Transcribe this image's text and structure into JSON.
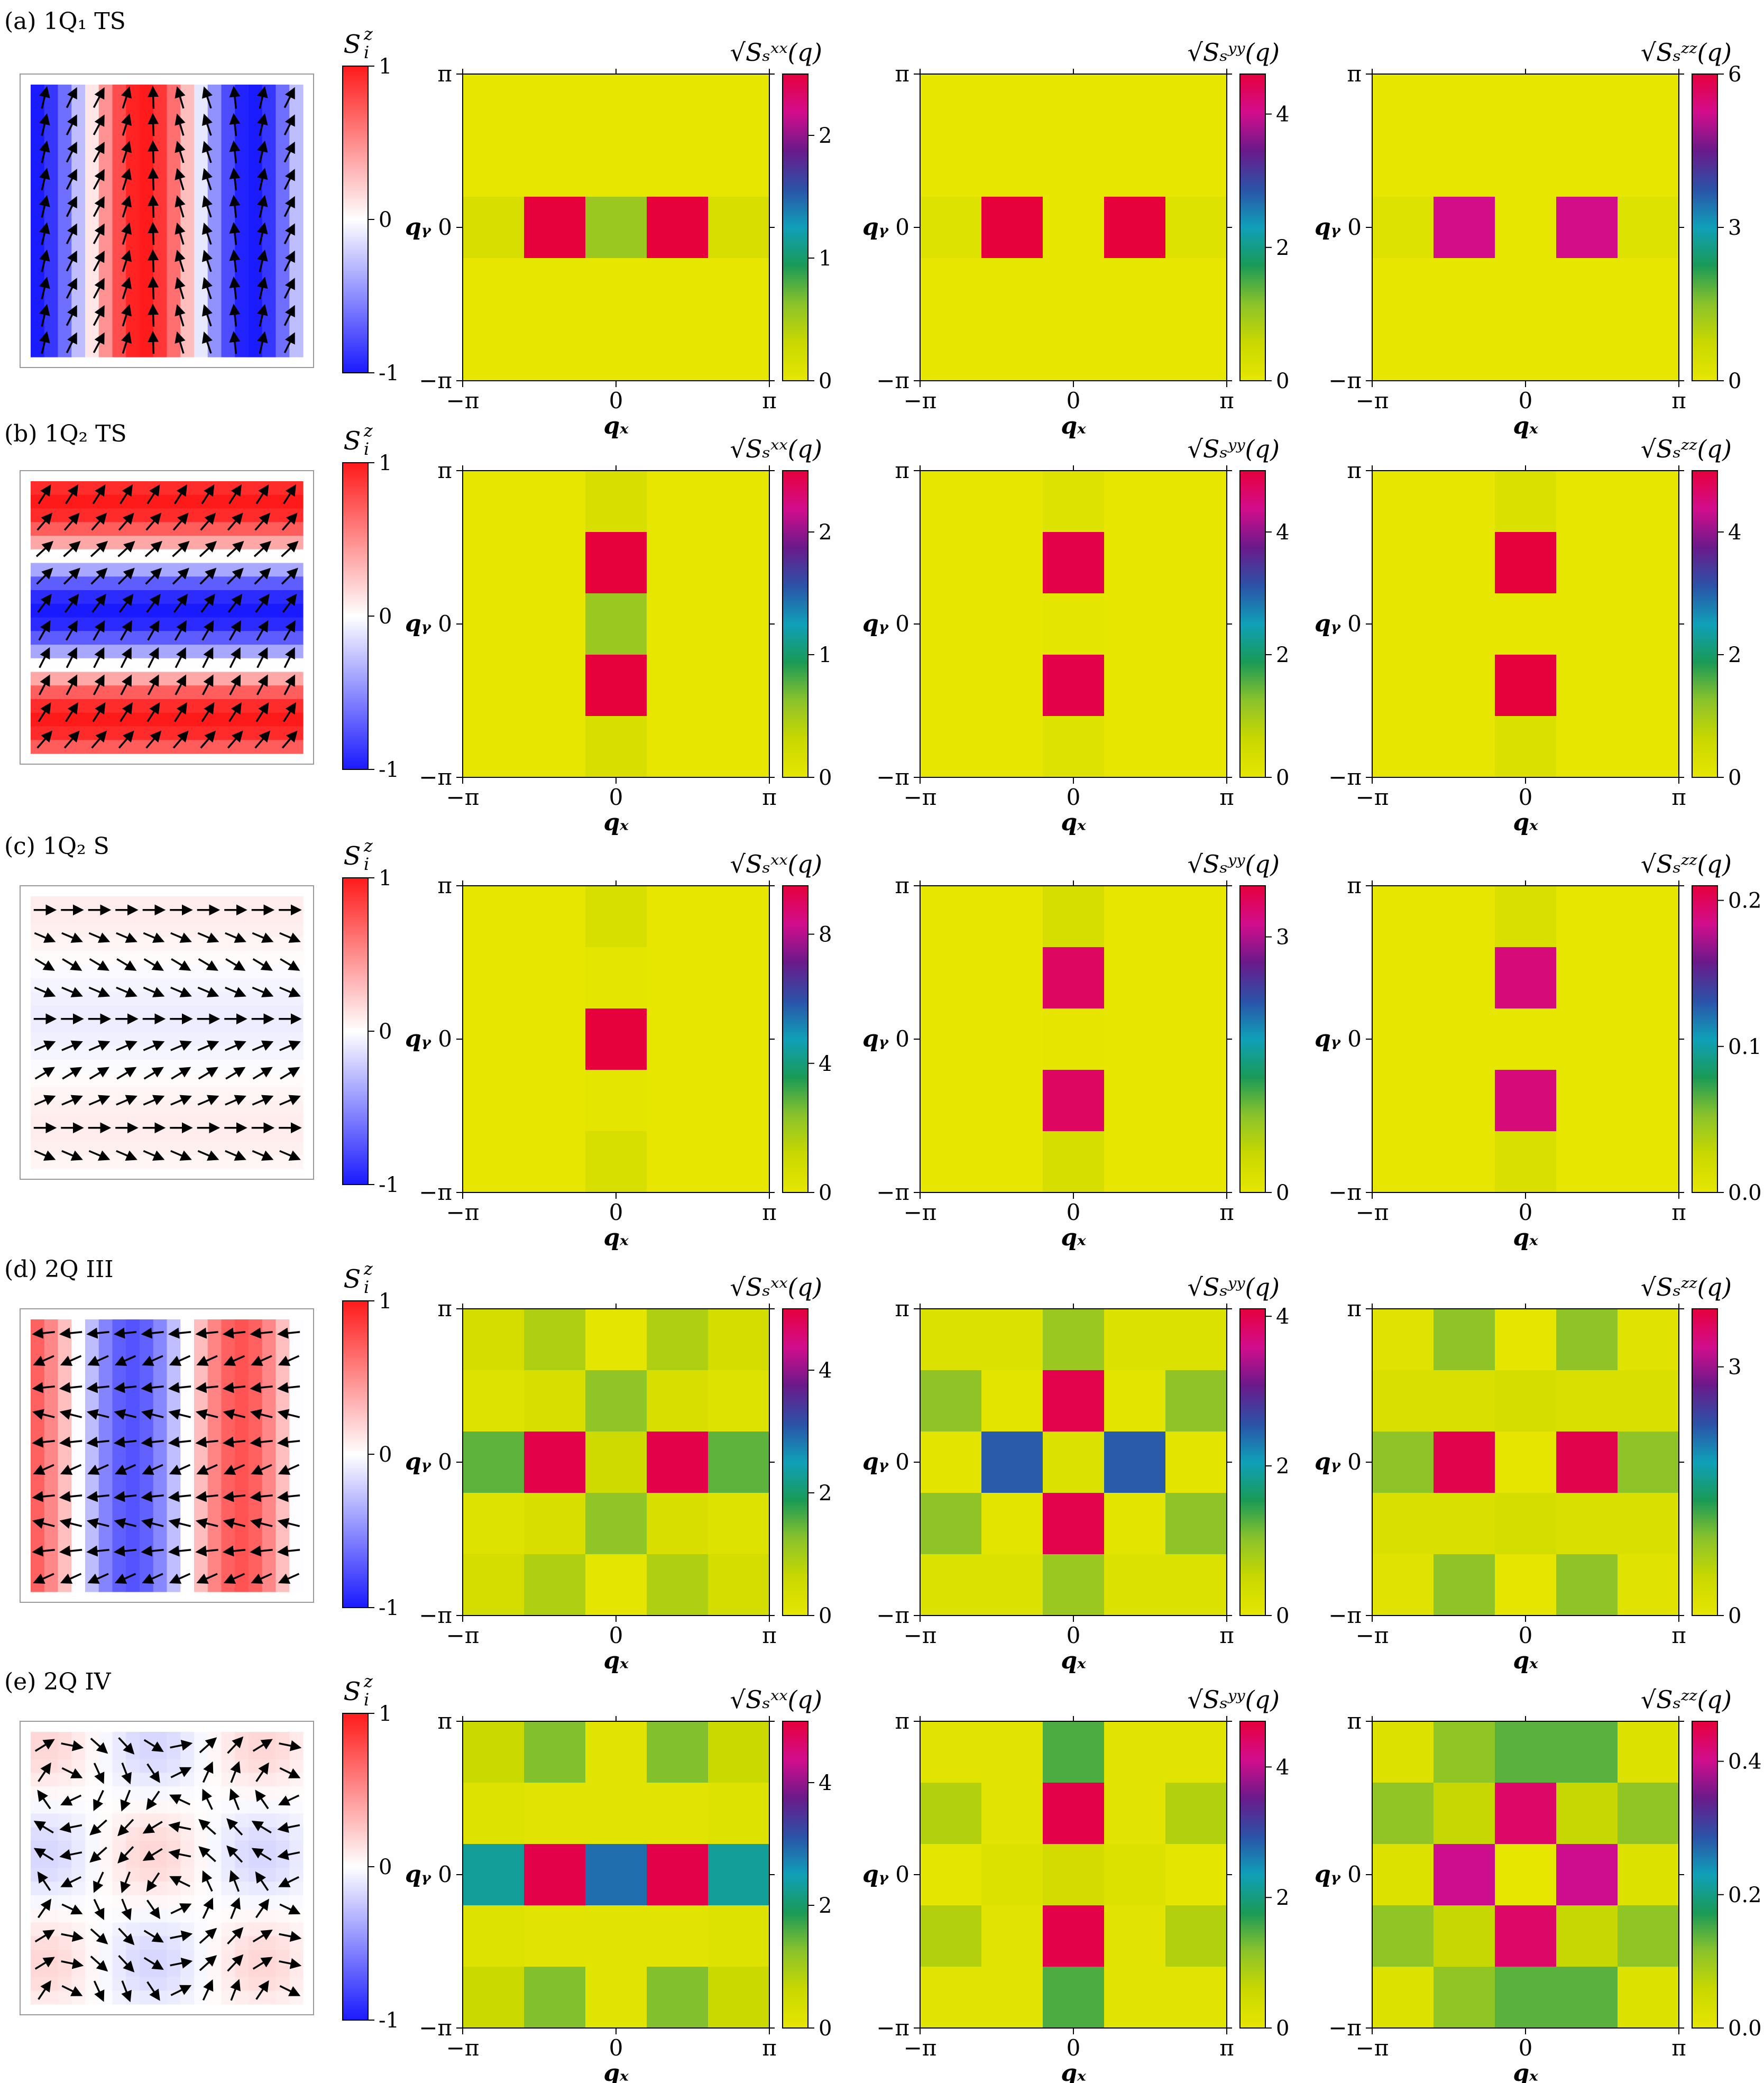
{
  "rows": [
    {
      "label": "(a) 1Q₁ TS",
      "real_space": {
        "colorbar_label": "Sᵢᶻ",
        "ticks": [
          "1",
          "0",
          "-1"
        ],
        "pattern": "vertical-stripes"
      },
      "panels": [
        {
          "label": "√Sₛˣˣ(q)",
          "ticks": [
            "2",
            "1",
            "0"
          ],
          "tick_values": [
            2,
            1,
            0
          ],
          "max": 2.5
        },
        {
          "label": "√Sₛʸʸ(q)",
          "ticks": [
            "4",
            "2",
            "0"
          ],
          "tick_values": [
            4,
            2,
            0
          ],
          "max": 4.6
        },
        {
          "label": "√Sₛᶻᶻ(q)",
          "ticks": [
            "6",
            "3",
            "0"
          ],
          "tick_values": [
            6,
            3,
            0
          ],
          "max": 6
        }
      ]
    },
    {
      "label": "(b) 1Q₂ TS",
      "real_space": {
        "colorbar_label": "Sᵢᶻ",
        "ticks": [
          "1",
          "0",
          "-1"
        ],
        "pattern": "horizontal-stripes"
      },
      "panels": [
        {
          "label": "√Sₛˣˣ(q)",
          "ticks": [
            "2",
            "1",
            "0"
          ],
          "tick_values": [
            2,
            1,
            0
          ],
          "max": 2.5
        },
        {
          "label": "√Sₛʸʸ(q)",
          "ticks": [
            "4",
            "2",
            "0"
          ],
          "tick_values": [
            4,
            2,
            0
          ],
          "max": 5
        },
        {
          "label": "√Sₛᶻᶻ(q)",
          "ticks": [
            "4",
            "2",
            "0"
          ],
          "tick_values": [
            4,
            2,
            0
          ],
          "max": 5
        }
      ]
    },
    {
      "label": "(c) 1Q₂ S",
      "real_space": {
        "colorbar_label": "Sᵢᶻ",
        "ticks": [
          "1",
          "0",
          "-1"
        ],
        "pattern": "screw"
      },
      "panels": [
        {
          "label": "√Sₛˣˣ(q)",
          "ticks": [
            "8",
            "4",
            "0"
          ],
          "tick_values": [
            8,
            4,
            0
          ],
          "max": 9.5
        },
        {
          "label": "√Sₛʸʸ(q)",
          "ticks": [
            "3",
            "0"
          ],
          "tick_values": [
            3,
            0
          ],
          "max": 3.6
        },
        {
          "label": "√Sₛᶻᶻ(q)",
          "ticks": [
            "0.2",
            "0.1",
            "0.0"
          ],
          "tick_values": [
            0.2,
            0.1,
            0
          ],
          "max": 0.21
        }
      ]
    },
    {
      "label": "(d) 2Q III",
      "real_space": {
        "colorbar_label": "Sᵢᶻ",
        "ticks": [
          "1",
          "0",
          "-1"
        ],
        "pattern": "2Q-III"
      },
      "panels": [
        {
          "label": "√Sₛˣˣ(q)",
          "ticks": [
            "4",
            "2",
            "0"
          ],
          "tick_values": [
            4,
            2,
            0
          ],
          "max": 5
        },
        {
          "label": "√Sₛʸʸ(q)",
          "ticks": [
            "4",
            "2",
            "0"
          ],
          "tick_values": [
            4,
            2,
            0
          ],
          "max": 4.1
        },
        {
          "label": "√Sₛᶻᶻ(q)",
          "ticks": [
            "3",
            "0"
          ],
          "tick_values": [
            3,
            0
          ],
          "max": 3.7
        }
      ]
    },
    {
      "label": "(e) 2Q IV",
      "real_space": {
        "colorbar_label": "Sᵢᶻ",
        "ticks": [
          "1",
          "0",
          "-1"
        ],
        "pattern": "2Q-IV"
      },
      "panels": [
        {
          "label": "√Sₛˣˣ(q)",
          "ticks": [
            "4",
            "2",
            "0"
          ],
          "tick_values": [
            4,
            2,
            0
          ],
          "max": 5
        },
        {
          "label": "√Sₛʸʸ(q)",
          "ticks": [
            "4",
            "2",
            "0"
          ],
          "tick_values": [
            4,
            2,
            0
          ],
          "max": 4.7
        },
        {
          "label": "√Sₛᶻᶻ(q)",
          "ticks": [
            "0.4",
            "0.2",
            "0.0"
          ],
          "tick_values": [
            0.4,
            0.2,
            0
          ],
          "max": 0.46
        }
      ]
    }
  ],
  "axes": {
    "xlabel": "qₓ",
    "ylabel": "qᵧ",
    "xticks": [
      "−π",
      "0",
      "π"
    ],
    "yticks": [
      "π",
      "0",
      "−π"
    ]
  },
  "colors": {
    "momentum_colormap": [
      "#e6e600",
      "#c9d800",
      "#8bc32a",
      "#1a9a56",
      "#0fa0b8",
      "#2b52a8",
      "#6a1a8a",
      "#d20d8c",
      "#e6003c"
    ],
    "real_space_colormap": [
      "#1a1aff",
      "#ffffff",
      "#ff1a1a"
    ]
  },
  "chart_data": [
    {
      "type": "heatmap",
      "row": "a",
      "quantity": "√Sₛˣˣ(q)",
      "x": [
        "-2π/5",
        "-π/5",
        "0",
        "π/5",
        "2π/5"
      ],
      "y": [
        "2π/5",
        "π/5",
        "0",
        "-π/5",
        "-2π/5"
      ],
      "z": [
        [
          0,
          0,
          0,
          0,
          0
        ],
        [
          0,
          0,
          0,
          0,
          0
        ],
        [
          0.15,
          2.5,
          0.55,
          2.5,
          0.15
        ],
        [
          0,
          0,
          0,
          0,
          0
        ],
        [
          0,
          0,
          0,
          0,
          0
        ]
      ],
      "range": [
        0,
        2.5
      ]
    },
    {
      "type": "heatmap",
      "row": "a",
      "quantity": "√Sₛʸʸ(q)",
      "z": [
        [
          0,
          0,
          0,
          0,
          0
        ],
        [
          0,
          0,
          0,
          0,
          0
        ],
        [
          0.15,
          4.6,
          0,
          4.6,
          0.15
        ],
        [
          0,
          0,
          0,
          0,
          0
        ],
        [
          0,
          0,
          0,
          0,
          0
        ]
      ],
      "range": [
        0,
        4.6
      ]
    },
    {
      "type": "heatmap",
      "row": "a",
      "quantity": "√Sₛᶻᶻ(q)",
      "z": [
        [
          0,
          0,
          0,
          0,
          0
        ],
        [
          0,
          0,
          0,
          0,
          0
        ],
        [
          0.2,
          5.3,
          0,
          5.3,
          0.2
        ],
        [
          0,
          0,
          0,
          0,
          0
        ],
        [
          0,
          0,
          0,
          0,
          0
        ]
      ],
      "range": [
        0,
        6
      ]
    },
    {
      "type": "heatmap",
      "row": "b",
      "quantity": "√Sₛˣˣ(q)",
      "z": [
        [
          0,
          0,
          0.15,
          0,
          0
        ],
        [
          0,
          0,
          2.5,
          0,
          0
        ],
        [
          0,
          0,
          0.55,
          0,
          0
        ],
        [
          0,
          0,
          2.5,
          0,
          0
        ],
        [
          0,
          0,
          0.15,
          0,
          0
        ]
      ],
      "range": [
        0,
        2.5
      ]
    },
    {
      "type": "heatmap",
      "row": "b",
      "quantity": "√Sₛʸʸ(q)",
      "z": [
        [
          0,
          0,
          0.2,
          0,
          0
        ],
        [
          0,
          0,
          4.9,
          0,
          0
        ],
        [
          0,
          0,
          0.05,
          0,
          0
        ],
        [
          0,
          0,
          4.9,
          0,
          0
        ],
        [
          0,
          0,
          0.2,
          0,
          0
        ]
      ],
      "range": [
        0,
        5
      ]
    },
    {
      "type": "heatmap",
      "row": "b",
      "quantity": "√Sₛᶻᶻ(q)",
      "z": [
        [
          0,
          0,
          0.25,
          0,
          0
        ],
        [
          0,
          0,
          5,
          0,
          0
        ],
        [
          0,
          0,
          0,
          0,
          0
        ],
        [
          0,
          0,
          5,
          0,
          0
        ],
        [
          0,
          0,
          0.25,
          0,
          0
        ]
      ],
      "range": [
        0,
        5
      ]
    },
    {
      "type": "heatmap",
      "row": "c",
      "quantity": "√Sₛˣˣ(q)",
      "z": [
        [
          0,
          0,
          0.6,
          0,
          0
        ],
        [
          0,
          0,
          0.1,
          0,
          0
        ],
        [
          0,
          0,
          9.5,
          0,
          0
        ],
        [
          0,
          0,
          0.1,
          0,
          0
        ],
        [
          0,
          0,
          0.6,
          0,
          0
        ]
      ],
      "range": [
        0,
        9.5
      ]
    },
    {
      "type": "heatmap",
      "row": "c",
      "quantity": "√Sₛʸʸ(q)",
      "z": [
        [
          0,
          0,
          0.25,
          0,
          0
        ],
        [
          0,
          0,
          3.4,
          0,
          0
        ],
        [
          0,
          0,
          0.02,
          0,
          0
        ],
        [
          0,
          0,
          3.4,
          0,
          0
        ],
        [
          0,
          0,
          0.25,
          0,
          0
        ]
      ],
      "range": [
        0,
        3.6
      ]
    },
    {
      "type": "heatmap",
      "row": "c",
      "quantity": "√Sₛᶻᶻ(q)",
      "z": [
        [
          0,
          0,
          0.012,
          0,
          0
        ],
        [
          0,
          0,
          0.19,
          0,
          0
        ],
        [
          0,
          0,
          0,
          0,
          0
        ],
        [
          0,
          0,
          0.19,
          0,
          0
        ],
        [
          0,
          0,
          0.012,
          0,
          0
        ]
      ],
      "range": [
        0,
        0.21
      ]
    },
    {
      "type": "heatmap",
      "row": "d",
      "quantity": "√Sₛˣˣ(q)",
      "z": [
        [
          0.4,
          0.9,
          0.05,
          0.9,
          0.4
        ],
        [
          0.2,
          0.3,
          1.2,
          0.3,
          0.2
        ],
        [
          1.5,
          4.9,
          0.5,
          4.9,
          1.5
        ],
        [
          0.2,
          0.3,
          1.2,
          0.3,
          0.2
        ],
        [
          0.4,
          0.9,
          0.05,
          0.9,
          0.4
        ]
      ],
      "range": [
        0,
        5
      ]
    },
    {
      "type": "heatmap",
      "row": "d",
      "quantity": "√Sₛʸʸ(q)",
      "z": [
        [
          0.2,
          0.2,
          0.9,
          0.2,
          0.2
        ],
        [
          1.0,
          0.05,
          4.0,
          0.05,
          1.0
        ],
        [
          0.05,
          2.5,
          0.2,
          2.5,
          0.05
        ],
        [
          1.0,
          0.05,
          4.0,
          0.05,
          1.0
        ],
        [
          0.2,
          0.2,
          0.9,
          0.2,
          0.2
        ]
      ],
      "range": [
        0,
        4.1
      ]
    },
    {
      "type": "heatmap",
      "row": "d",
      "quantity": "√Sₛᶻᶻ(q)",
      "z": [
        [
          0.1,
          0.9,
          0.02,
          0.9,
          0.1
        ],
        [
          0.2,
          0.2,
          0.3,
          0.2,
          0.2
        ],
        [
          0.9,
          3.6,
          0.02,
          3.6,
          0.9
        ],
        [
          0.2,
          0.2,
          0.3,
          0.2,
          0.2
        ],
        [
          0.1,
          0.9,
          0.02,
          0.9,
          0.1
        ]
      ],
      "range": [
        0,
        3.7
      ]
    },
    {
      "type": "heatmap",
      "row": "e",
      "quantity": "√Sₛˣˣ(q)",
      "z": [
        [
          0.6,
          1.3,
          0.1,
          1.3,
          0.6
        ],
        [
          0.2,
          0.1,
          0.1,
          0.1,
          0.2
        ],
        [
          2.3,
          4.9,
          2.9,
          4.9,
          2.3
        ],
        [
          0.2,
          0.1,
          0.1,
          0.1,
          0.2
        ],
        [
          0.6,
          1.3,
          0.1,
          1.3,
          0.6
        ]
      ],
      "range": [
        0,
        5
      ]
    },
    {
      "type": "heatmap",
      "row": "e",
      "quantity": "√Sₛʸʸ(q)",
      "z": [
        [
          0.1,
          0.1,
          1.5,
          0.1,
          0.1
        ],
        [
          0.8,
          0.1,
          4.6,
          0.1,
          0.8
        ],
        [
          0.05,
          0.2,
          0.4,
          0.2,
          0.05
        ],
        [
          0.8,
          0.1,
          4.6,
          0.1,
          0.8
        ],
        [
          0.1,
          0.1,
          1.5,
          0.1,
          0.1
        ]
      ],
      "range": [
        0,
        4.7
      ]
    },
    {
      "type": "heatmap",
      "row": "e",
      "quantity": "√Sₛᶻᶻ(q)",
      "z": [
        [
          0.02,
          0.11,
          0.14,
          0.14,
          0.02
        ],
        [
          0.11,
          0.06,
          0.43,
          0.06,
          0.11
        ],
        [
          0.02,
          0.4,
          0.0,
          0.4,
          0.02
        ],
        [
          0.11,
          0.06,
          0.43,
          0.06,
          0.11
        ],
        [
          0.02,
          0.11,
          0.14,
          0.14,
          0.02
        ]
      ],
      "range": [
        0,
        0.46
      ]
    }
  ]
}
